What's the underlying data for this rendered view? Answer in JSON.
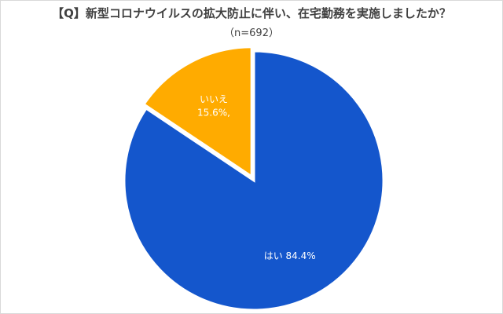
{
  "chart_data": {
    "type": "pie",
    "title": "【Q】新型コロナウイルスの拡大防止に伴い、在宅勤務を実施しましたか？",
    "subtitle": "（n=692）",
    "categories": [
      "はい",
      "いいえ"
    ],
    "values": [
      84.4,
      15.6
    ],
    "value_labels": [
      "84.4%",
      "15.6%,"
    ],
    "colors": [
      "#1456CC",
      "#FFAB00"
    ],
    "legend": "none"
  }
}
